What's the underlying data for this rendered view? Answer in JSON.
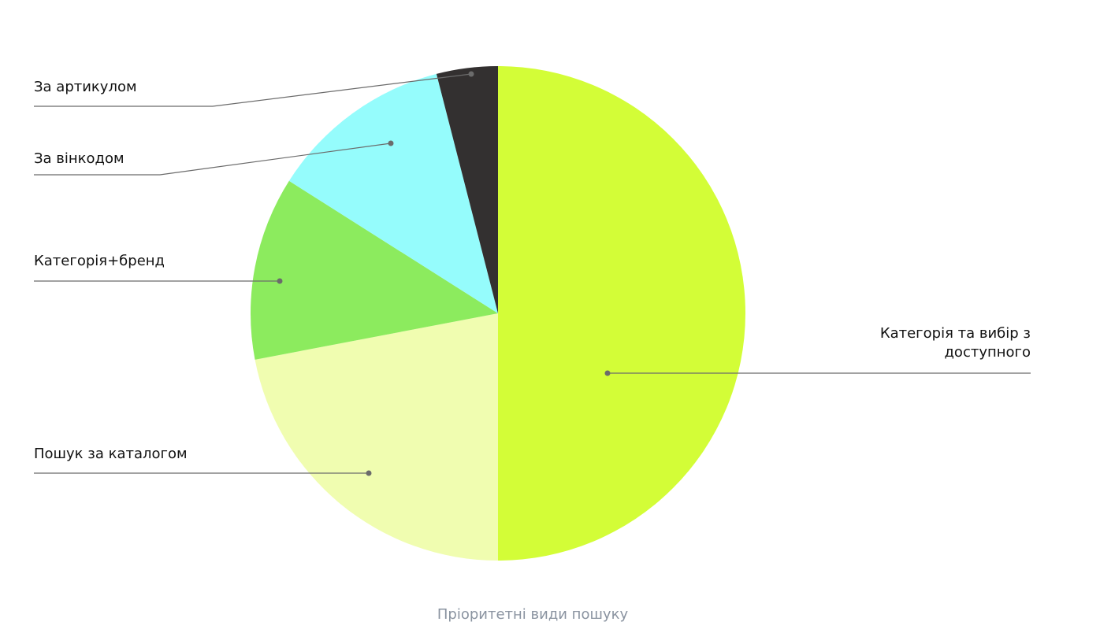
{
  "chart_data": {
    "type": "pie",
    "title": "Пріоритетні види пошуку",
    "categories": [
      "Категорія та вибір з доступного",
      "Пошук за каталогом",
      "Категорія+бренд",
      "За вінкодом",
      "За артикулом"
    ],
    "values": [
      50,
      22,
      12,
      12,
      4
    ],
    "colors": [
      "#d3fd37",
      "#f0fdb0",
      "#8ceb5e",
      "#95fcfc",
      "#333030"
    ]
  }
}
